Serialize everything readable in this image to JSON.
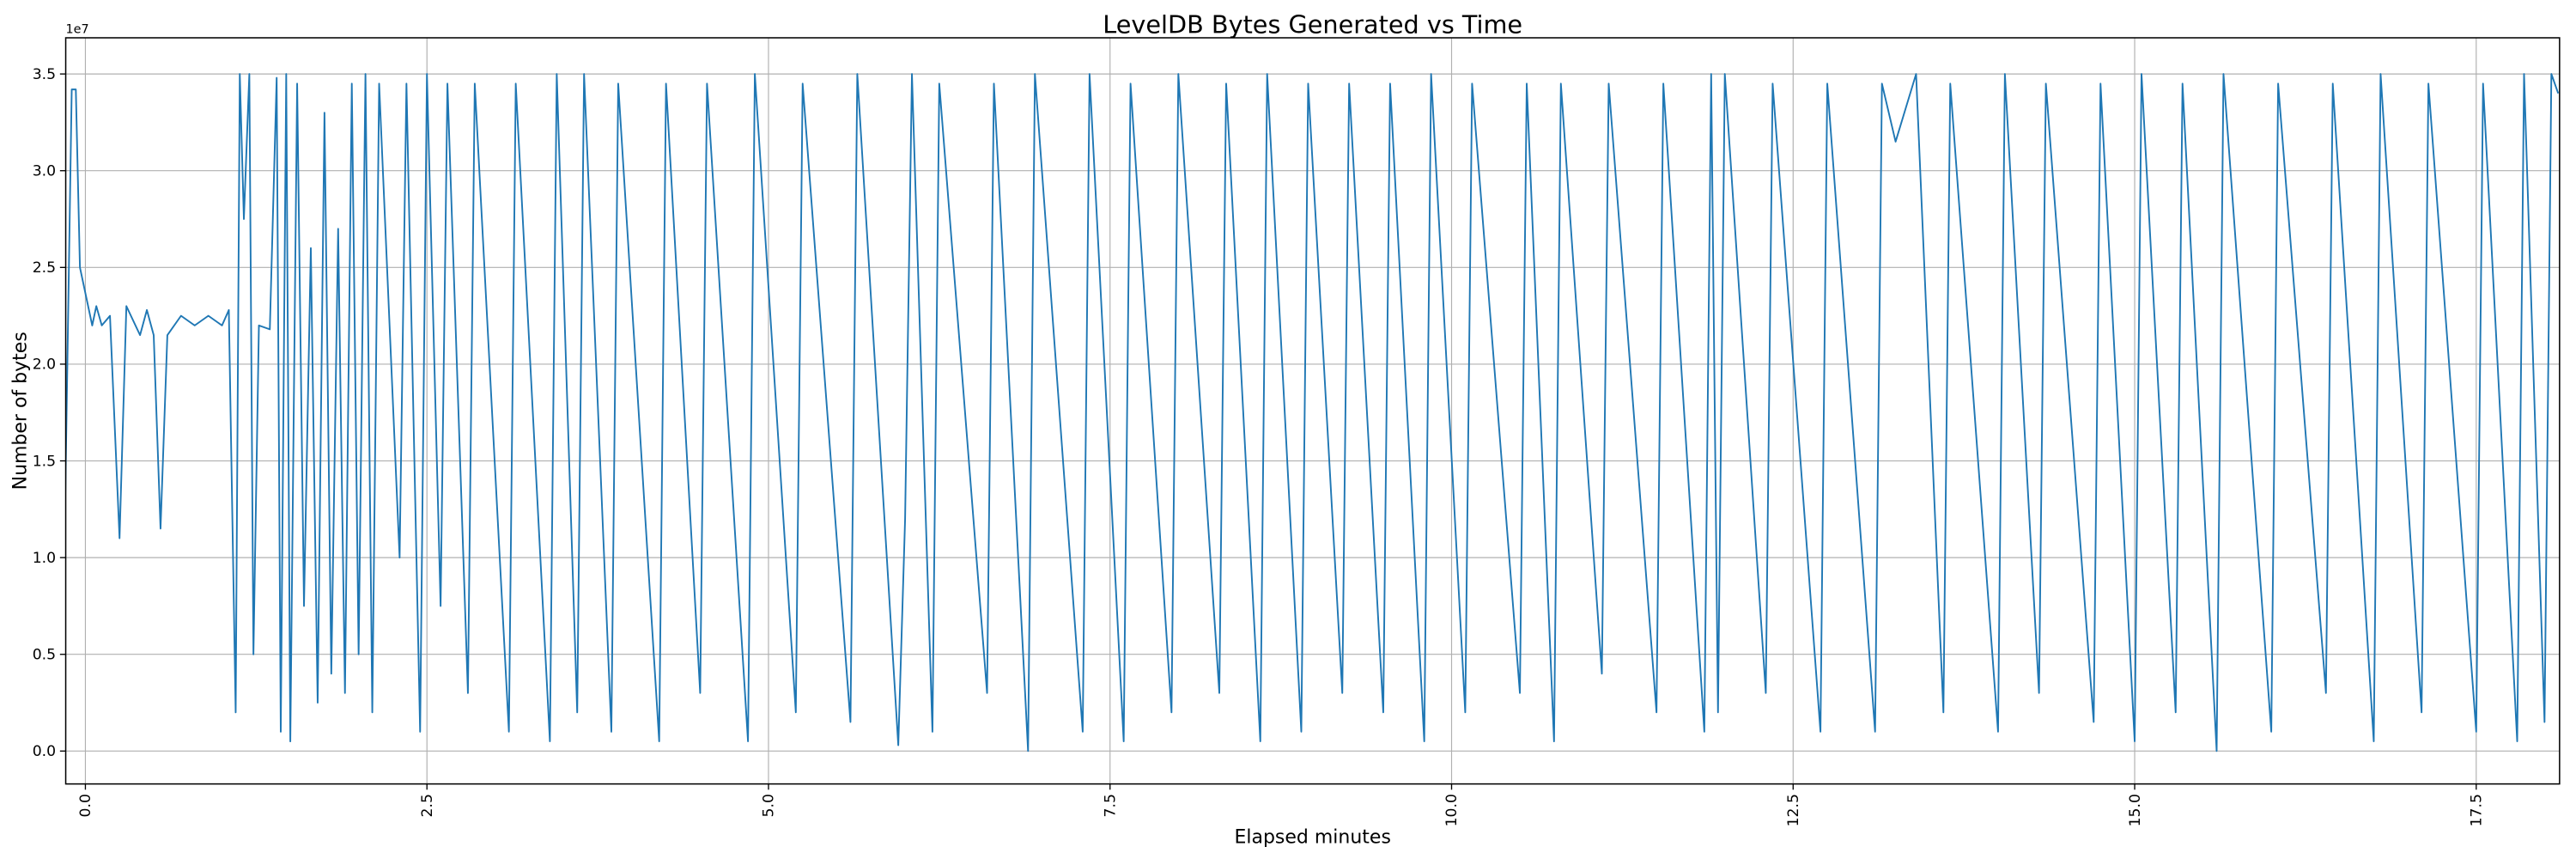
{
  "chart_data": {
    "type": "line",
    "title": "LevelDB Bytes Generated vs Time",
    "xlabel": "Elapsed minutes",
    "ylabel": "Number of bytes",
    "y_offset_label": "1e7",
    "color": "#1f77b4",
    "grid": true,
    "xlim": [
      -0.144,
      18.11
    ],
    "ylim": [
      -1700000,
      36870000
    ],
    "xticks": [
      {
        "value": 0,
        "label": "0.0"
      },
      2.5,
      {
        "value": 5,
        "label": "5.0"
      },
      7.5,
      {
        "value": 10,
        "label": "10.0"
      },
      12.5,
      {
        "value": 15,
        "label": "15.0"
      },
      17.5
    ],
    "yticks": [
      {
        "value": 0,
        "label": "0.0"
      },
      {
        "value": 5000000,
        "label": "0.5"
      },
      {
        "value": 10000000,
        "label": "1.0"
      },
      {
        "value": 15000000,
        "label": "1.5"
      },
      {
        "value": 20000000,
        "label": "2.0"
      },
      {
        "value": 25000000,
        "label": "2.5"
      },
      {
        "value": 30000000,
        "label": "3.0"
      },
      {
        "value": 35000000,
        "label": "3.5"
      }
    ],
    "x": [
      -0.15,
      -0.1,
      -0.07,
      -0.04,
      0.05,
      0.08,
      0.12,
      0.18,
      0.25,
      0.3,
      0.4,
      0.45,
      0.5,
      0.55,
      0.6,
      0.7,
      0.8,
      0.9,
      1.0,
      1.05,
      1.1,
      1.13,
      1.16,
      1.2,
      1.23,
      1.27,
      1.35,
      1.4,
      1.43,
      1.47,
      1.5,
      1.55,
      1.6,
      1.65,
      1.7,
      1.75,
      1.8,
      1.85,
      1.9,
      1.95,
      2.0,
      2.05,
      2.1,
      2.15,
      2.3,
      2.35,
      2.45,
      2.5,
      2.6,
      2.65,
      2.8,
      2.85,
      3.1,
      3.15,
      3.4,
      3.45,
      3.6,
      3.65,
      3.85,
      3.9,
      4.2,
      4.25,
      4.5,
      4.55,
      4.85,
      4.9,
      5.2,
      5.25,
      5.6,
      5.65,
      5.95,
      6.0,
      6.05,
      6.2,
      6.25,
      6.6,
      6.65,
      6.9,
      6.95,
      7.3,
      7.35,
      7.6,
      7.65,
      7.95,
      8.0,
      8.3,
      8.35,
      8.6,
      8.65,
      8.9,
      8.95,
      9.2,
      9.25,
      9.5,
      9.55,
      9.8,
      9.85,
      10.1,
      10.15,
      10.5,
      10.55,
      10.75,
      10.8,
      11.1,
      11.15,
      11.5,
      11.55,
      11.85,
      11.9,
      11.95,
      12.0,
      12.3,
      12.35,
      12.7,
      12.75,
      13.1,
      13.15,
      13.25,
      13.4,
      13.6,
      13.65,
      14.0,
      14.05,
      14.3,
      14.35,
      14.7,
      14.75,
      15.0,
      15.05,
      15.3,
      15.35,
      15.6,
      15.65,
      16.0,
      16.05,
      16.4,
      16.45,
      16.75,
      16.8,
      17.1,
      17.15,
      17.5,
      17.55,
      17.8,
      17.85,
      18.0,
      18.05,
      18.1
    ],
    "values": [
      12000000,
      34200000,
      34200000,
      25000000,
      22000000,
      23000000,
      22000000,
      22500000,
      11000000,
      23000000,
      21500000,
      22800000,
      21500000,
      11500000,
      21500000,
      22500000,
      22000000,
      22500000,
      22000000,
      22800000,
      2000000,
      35000000,
      27500000,
      35000000,
      5000000,
      22000000,
      21800000,
      34800000,
      1000000,
      35000000,
      500000,
      34500000,
      7500000,
      26000000,
      2500000,
      33000000,
      4000000,
      27000000,
      3000000,
      34500000,
      5000000,
      35000000,
      2000000,
      34500000,
      10000000,
      34500000,
      1000000,
      35000000,
      7500000,
      34500000,
      3000000,
      34500000,
      1000000,
      34500000,
      500000,
      35000000,
      2000000,
      35000000,
      1000000,
      34500000,
      500000,
      34500000,
      3000000,
      34500000,
      500000,
      35000000,
      2000000,
      34500000,
      1500000,
      35000000,
      300000,
      12000000,
      35000000,
      1000000,
      34500000,
      3000000,
      34500000,
      0,
      35000000,
      1000000,
      35000000,
      500000,
      34500000,
      2000000,
      35000000,
      3000000,
      34500000,
      500000,
      35000000,
      1000000,
      34500000,
      3000000,
      34500000,
      2000000,
      34500000,
      500000,
      35000000,
      2000000,
      34500000,
      3000000,
      34500000,
      500000,
      34500000,
      4000000,
      34500000,
      2000000,
      34500000,
      1000000,
      35000000,
      2000000,
      35000000,
      3000000,
      34500000,
      1000000,
      34500000,
      1000000,
      34500000,
      31500000,
      35000000,
      2000000,
      34500000,
      1000000,
      35000000,
      3000000,
      34500000,
      1500000,
      34500000,
      500000,
      35000000,
      2000000,
      34500000,
      0,
      35000000,
      1000000,
      34500000,
      3000000,
      34500000,
      500000,
      35000000,
      2000000,
      34500000,
      1000000,
      34500000,
      500000,
      35000000,
      1500000,
      35000000,
      34000000
    ]
  }
}
